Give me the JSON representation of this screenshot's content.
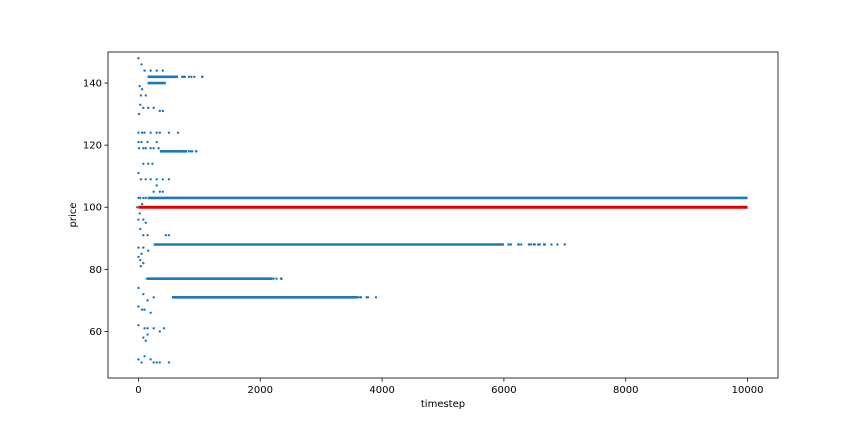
{
  "chart_data": {
    "type": "scatter",
    "title": "",
    "xlabel": "timestep",
    "ylabel": "price",
    "xlim": [
      -500,
      10500
    ],
    "ylim": [
      45,
      150
    ],
    "xticks": [
      0,
      2000,
      4000,
      6000,
      8000,
      10000
    ],
    "yticks": [
      60,
      80,
      100,
      120,
      140
    ],
    "grid": false,
    "legend": "none",
    "colors": {
      "scatter": "#1f77b4",
      "reference": "#e00000"
    },
    "series": [
      {
        "style": "dense-band",
        "bands": [
          {
            "y": 103,
            "x_start": 150,
            "x_end": 10000
          },
          {
            "y": 88,
            "x_start": 250,
            "x_end": 6000,
            "sparse_until": 7000
          },
          {
            "y": 71,
            "x_start": 550,
            "x_end": 3600,
            "sparse_until": 3900
          },
          {
            "y": 77,
            "x_start": 150,
            "x_end": 2200,
            "sparse_until": 2350
          },
          {
            "y": 118,
            "x_start": 350,
            "x_end": 800,
            "sparse_until": 950
          },
          {
            "y": 142,
            "x_start": 150,
            "x_end": 650,
            "sparse_until": 1050
          },
          {
            "y": 140,
            "x_start": 150,
            "x_end": 450,
            "sparse_until": 450
          }
        ],
        "points": [
          [
            0,
            148
          ],
          [
            50,
            146
          ],
          [
            100,
            144
          ],
          [
            200,
            144
          ],
          [
            300,
            144
          ],
          [
            400,
            144
          ],
          [
            20,
            139
          ],
          [
            60,
            138
          ],
          [
            40,
            136
          ],
          [
            120,
            136
          ],
          [
            30,
            133
          ],
          [
            80,
            132
          ],
          [
            160,
            132
          ],
          [
            250,
            132
          ],
          [
            350,
            131
          ],
          [
            400,
            131
          ],
          [
            10,
            130
          ],
          [
            0,
            124
          ],
          [
            60,
            124
          ],
          [
            100,
            124
          ],
          [
            200,
            124
          ],
          [
            300,
            124
          ],
          [
            350,
            124
          ],
          [
            500,
            124
          ],
          [
            650,
            124
          ],
          [
            0,
            121
          ],
          [
            50,
            121
          ],
          [
            150,
            121
          ],
          [
            300,
            121
          ],
          [
            10,
            119
          ],
          [
            80,
            119
          ],
          [
            120,
            119
          ],
          [
            200,
            119
          ],
          [
            250,
            119
          ],
          [
            330,
            119
          ],
          [
            80,
            114
          ],
          [
            160,
            114
          ],
          [
            230,
            114
          ],
          [
            0,
            111
          ],
          [
            40,
            109
          ],
          [
            120,
            109
          ],
          [
            200,
            109
          ],
          [
            300,
            109
          ],
          [
            400,
            109
          ],
          [
            500,
            109
          ],
          [
            300,
            107
          ],
          [
            250,
            105
          ],
          [
            350,
            105
          ],
          [
            400,
            105
          ],
          [
            0,
            103
          ],
          [
            30,
            103
          ],
          [
            80,
            103
          ],
          [
            120,
            103
          ],
          [
            -20,
            100
          ],
          [
            60,
            101
          ],
          [
            20,
            98
          ],
          [
            0,
            96
          ],
          [
            80,
            96
          ],
          [
            120,
            95
          ],
          [
            30,
            93
          ],
          [
            80,
            91
          ],
          [
            150,
            91
          ],
          [
            450,
            91
          ],
          [
            500,
            91
          ],
          [
            0,
            87
          ],
          [
            80,
            87
          ],
          [
            160,
            86
          ],
          [
            50,
            85
          ],
          [
            30,
            83
          ],
          [
            80,
            82
          ],
          [
            40,
            81
          ],
          [
            0,
            84
          ],
          [
            140,
            77
          ],
          [
            180,
            77
          ],
          [
            0,
            74
          ],
          [
            80,
            72
          ],
          [
            150,
            70
          ],
          [
            250,
            71
          ],
          [
            0,
            68
          ],
          [
            60,
            67
          ],
          [
            100,
            67
          ],
          [
            200,
            66
          ],
          [
            0,
            62
          ],
          [
            100,
            61
          ],
          [
            150,
            61
          ],
          [
            250,
            61
          ],
          [
            350,
            60
          ],
          [
            420,
            61
          ],
          [
            150,
            59
          ],
          [
            80,
            58
          ],
          [
            120,
            57
          ],
          [
            0,
            51
          ],
          [
            50,
            50
          ],
          [
            100,
            52
          ],
          [
            200,
            51
          ],
          [
            250,
            50
          ],
          [
            300,
            50
          ],
          [
            350,
            50
          ],
          [
            500,
            50
          ]
        ]
      },
      {
        "style": "line",
        "x": [
          0,
          10000
        ],
        "y": [
          100,
          100
        ]
      }
    ]
  }
}
